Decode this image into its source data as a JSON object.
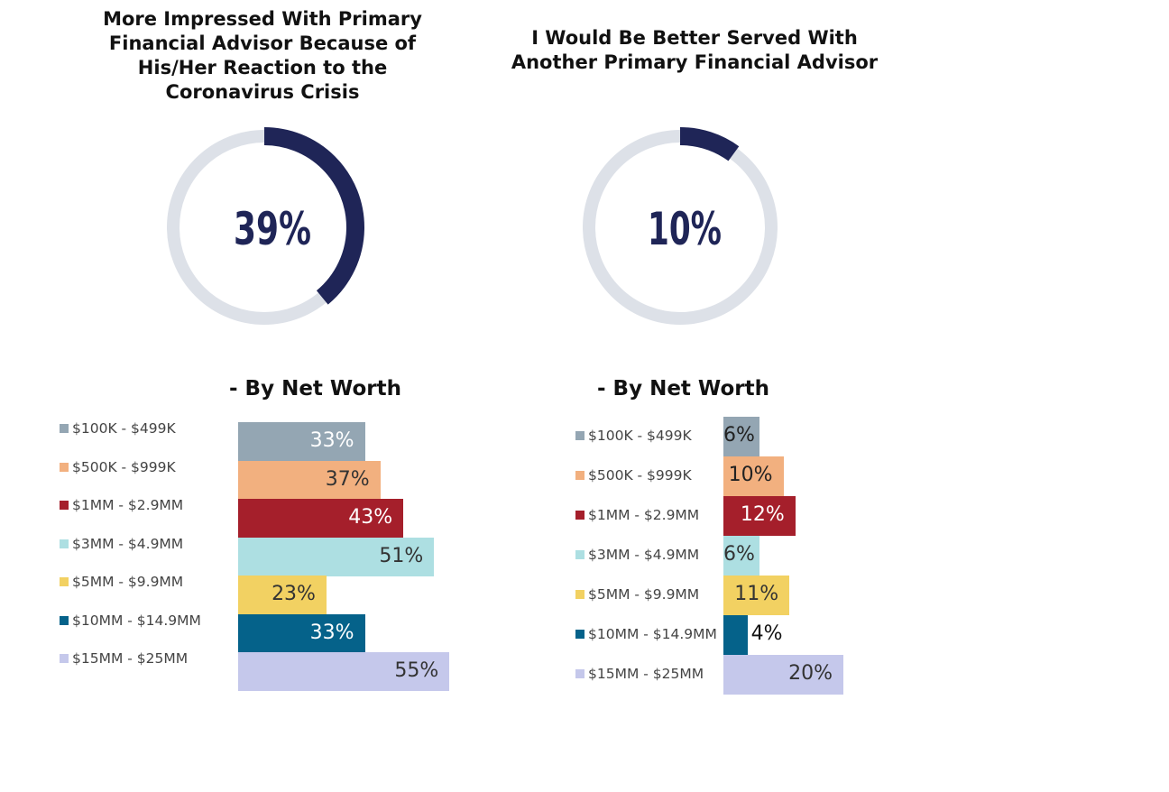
{
  "panels": [
    {
      "title": "More Impressed With Primary Financial Advisor Because of His/Her Reaction to the Coronavirus Crisis",
      "donut_value": 39,
      "donut_label": "39%",
      "subtitle": "- By Net Worth"
    },
    {
      "title": "I Would Be Better Served With Another Primary Financial Advisor",
      "donut_value": 10,
      "donut_label": "10%",
      "subtitle": "- By Net Worth"
    }
  ],
  "colors": {
    "donut_fill": "#1f2557",
    "donut_track": "#dde1e8",
    "donut_text": "#1f2557",
    "categories": [
      "#94a6b3",
      "#f2b07f",
      "#a51f2b",
      "#addfe2",
      "#f2d162",
      "#05628a",
      "#c5c8eb"
    ],
    "label_text": [
      "#ffffff",
      "#333333",
      "#ffffff",
      "#333333",
      "#333333",
      "#ffffff",
      "#333333"
    ]
  },
  "chart_data": [
    {
      "type": "pie",
      "title": "More Impressed With Primary Financial Advisor Because of His/Her Reaction to the Coronavirus Crisis",
      "values": [
        39,
        61
      ],
      "labels": [
        "39%",
        ""
      ]
    },
    {
      "type": "pie",
      "title": "I Would Be Better Served With Another Primary Financial Advisor",
      "values": [
        10,
        90
      ],
      "labels": [
        "10%",
        ""
      ]
    },
    {
      "type": "bar",
      "title": "- By Net Worth",
      "orientation": "horizontal",
      "categories": [
        "$100K - $499K",
        "$500K - $999K",
        "$1MM - $2.9MM",
        "$3MM - $4.9MM",
        "$5MM - $9.9MM",
        "$10MM - $14.9MM",
        "$15MM - $25MM"
      ],
      "values": [
        33,
        37,
        43,
        51,
        23,
        33,
        55
      ],
      "labels": [
        "33%",
        "37%",
        "43%",
        "51%",
        "23%",
        "33%",
        "55%"
      ],
      "legend": "left"
    },
    {
      "type": "bar",
      "title": "- By Net Worth",
      "orientation": "horizontal",
      "categories": [
        "$100K - $499K",
        "$500K - $999K",
        "$1MM - $2.9MM",
        "$3MM - $4.9MM",
        "$5MM - $9.9MM",
        "$10MM - $14.9MM",
        "$15MM - $25MM"
      ],
      "values": [
        6,
        10,
        12,
        6,
        11,
        4,
        20
      ],
      "labels": [
        "6%",
        "10%",
        "12%",
        "6%",
        "11%",
        "4%",
        "20%"
      ],
      "legend": "left"
    }
  ]
}
